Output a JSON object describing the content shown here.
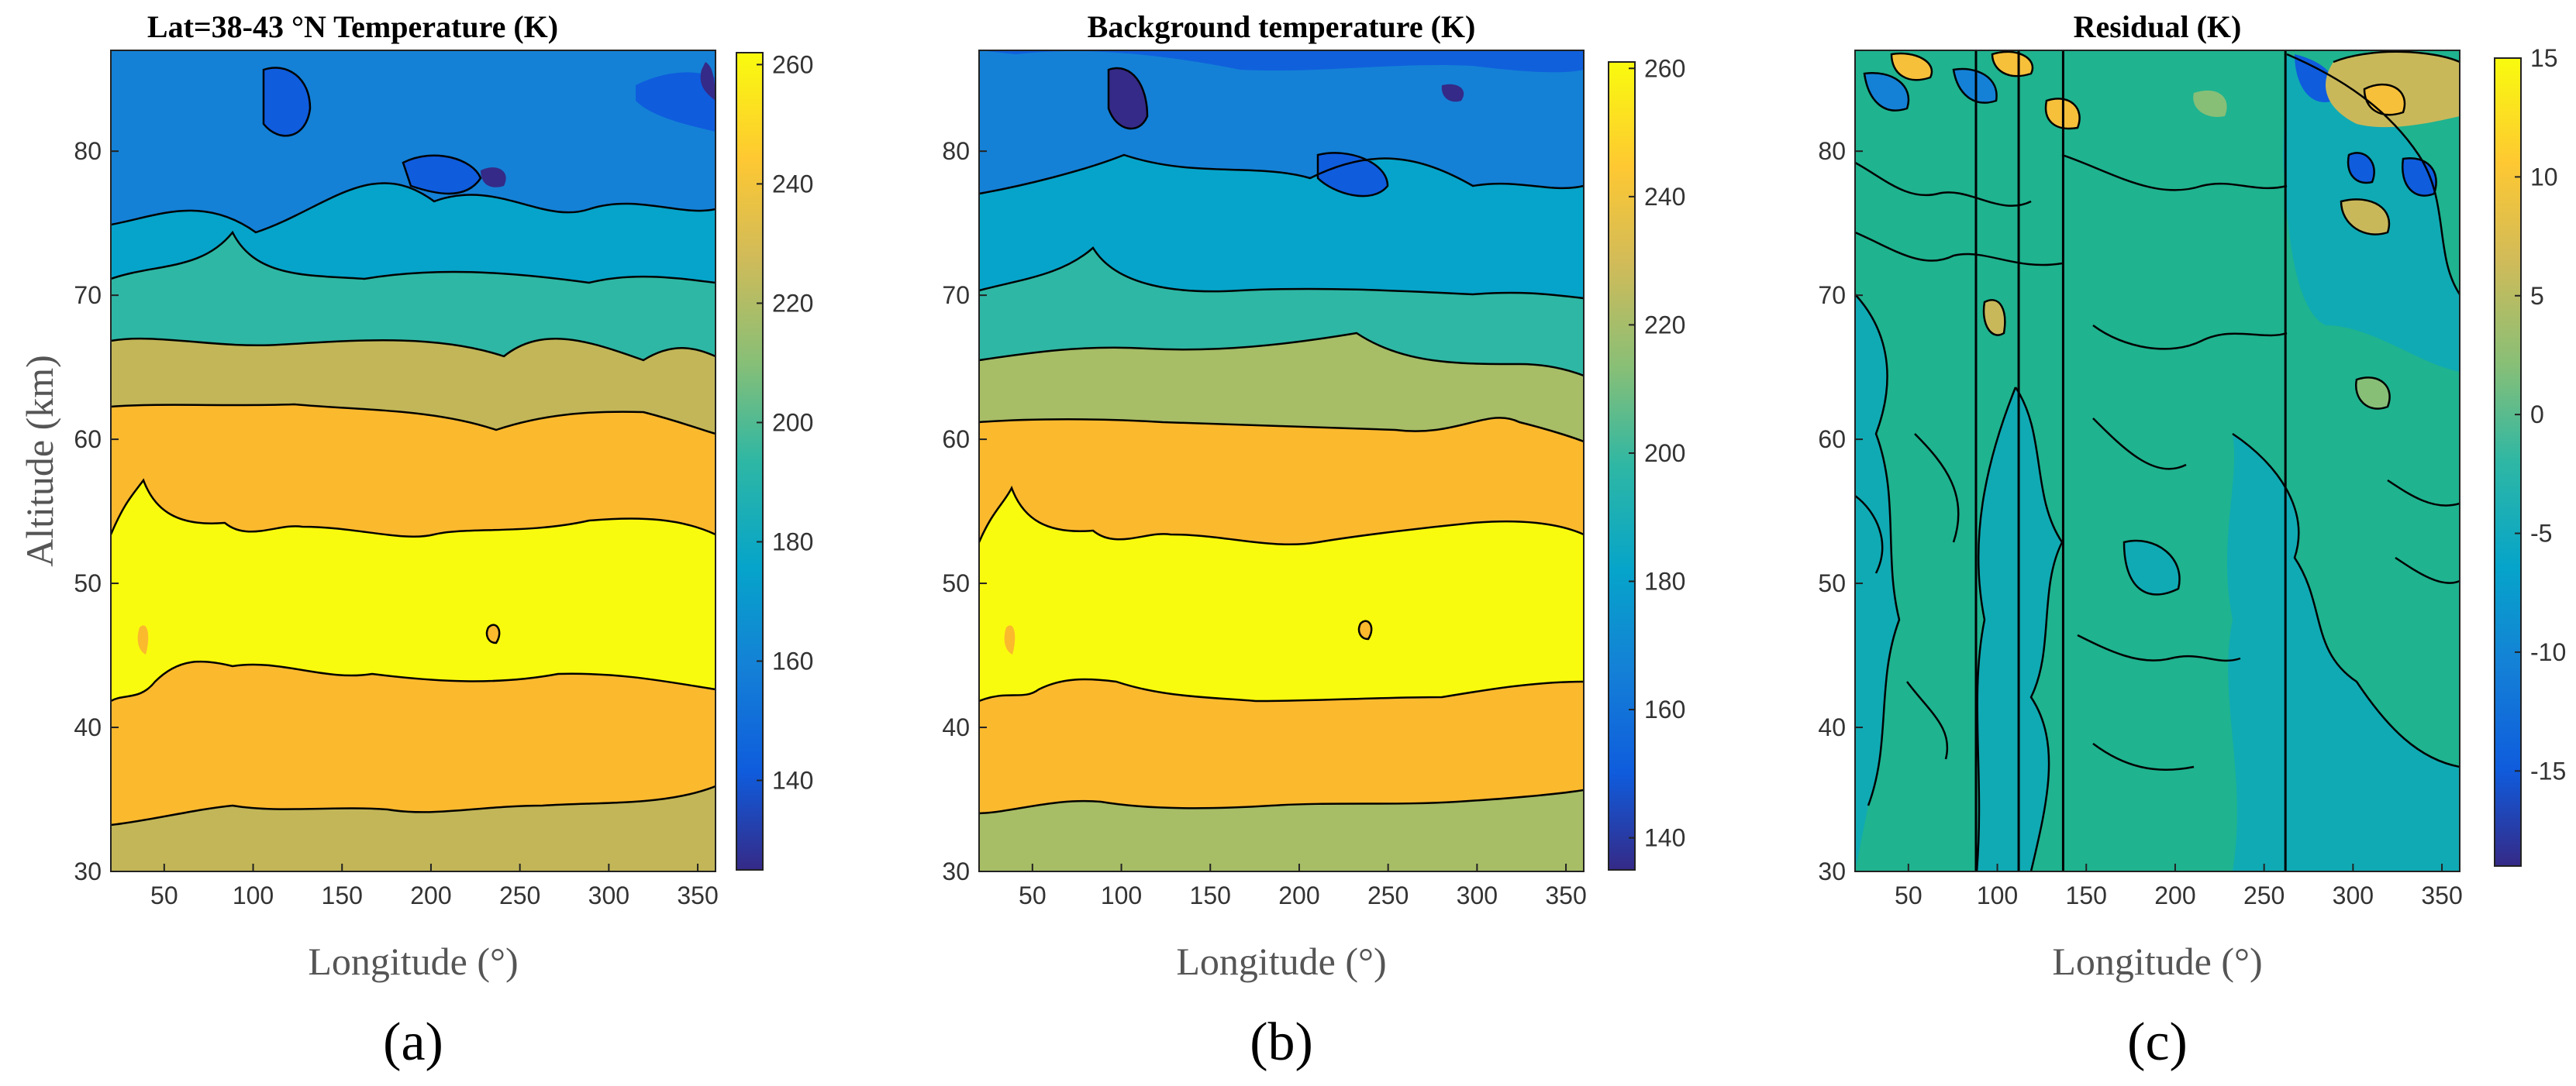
{
  "chart_data": [
    {
      "type": "heatmap",
      "panel_label": "(a)",
      "title": "Lat=38-43 °N   Temperature (K)",
      "xlabel": "Longitude (°)",
      "ylabel": "Altitude (km)",
      "xlim": [
        20,
        360
      ],
      "ylim": [
        30,
        87
      ],
      "xticks": [
        "50",
        "100",
        "150",
        "200",
        "250",
        "300",
        "350"
      ],
      "yticks": [
        "30",
        "40",
        "50",
        "60",
        "70",
        "80"
      ],
      "colorbar": {
        "min": 125,
        "max": 262,
        "ticks": [
          "140",
          "160",
          "180",
          "200",
          "220",
          "240",
          "260"
        ]
      },
      "levels": [
        {
          "altitude_range": [
            30,
            34
          ],
          "value": 225
        },
        {
          "altitude_range": [
            34,
            42
          ],
          "value": 240
        },
        {
          "altitude_range": [
            42,
            53
          ],
          "value": 255
        },
        {
          "altitude_range": [
            53,
            62
          ],
          "value": 240
        },
        {
          "altitude_range": [
            62,
            66
          ],
          "value": 225
        },
        {
          "altitude_range": [
            66,
            70
          ],
          "value": 200
        },
        {
          "altitude_range": [
            70,
            77
          ],
          "value": 180
        },
        {
          "altitude_range": [
            77,
            87
          ],
          "value": 160
        }
      ]
    },
    {
      "type": "heatmap",
      "panel_label": "(b)",
      "title": "Background temperature (K)",
      "xlabel": "Longitude (°)",
      "ylabel": "",
      "xlim": [
        20,
        360
      ],
      "ylim": [
        30,
        87
      ],
      "xticks": [
        "50",
        "100",
        "150",
        "200",
        "250",
        "300",
        "350"
      ],
      "yticks": [
        "30",
        "40",
        "50",
        "60",
        "70",
        "80"
      ],
      "colorbar": {
        "min": 135,
        "max": 261,
        "ticks": [
          "140",
          "160",
          "180",
          "200",
          "220",
          "240",
          "260"
        ]
      },
      "levels": [
        {
          "altitude_range": [
            30,
            34
          ],
          "value": 225
        },
        {
          "altitude_range": [
            34,
            42
          ],
          "value": 240
        },
        {
          "altitude_range": [
            42,
            53
          ],
          "value": 255
        },
        {
          "altitude_range": [
            53,
            62
          ],
          "value": 240
        },
        {
          "altitude_range": [
            62,
            66
          ],
          "value": 222
        },
        {
          "altitude_range": [
            66,
            70
          ],
          "value": 200
        },
        {
          "altitude_range": [
            70,
            77
          ],
          "value": 180
        },
        {
          "altitude_range": [
            77,
            87
          ],
          "value": 160
        }
      ]
    },
    {
      "type": "heatmap",
      "panel_label": "(c)",
      "title": "Residual (K)",
      "xlabel": "Longitude (°)",
      "ylabel": "",
      "xlim": [
        20,
        360
      ],
      "ylim": [
        30,
        87
      ],
      "xticks": [
        "50",
        "100",
        "150",
        "200",
        "250",
        "300",
        "350"
      ],
      "yticks": [
        "30",
        "40",
        "50",
        "60",
        "70",
        "80"
      ],
      "colorbar": {
        "min": -19,
        "max": 15,
        "ticks": [
          "15",
          "10",
          "5",
          "0",
          "-5",
          "-10",
          "-15"
        ]
      },
      "background_value": -1,
      "vertical_discontinuities": [
        88,
        112,
        137,
        262
      ]
    }
  ]
}
